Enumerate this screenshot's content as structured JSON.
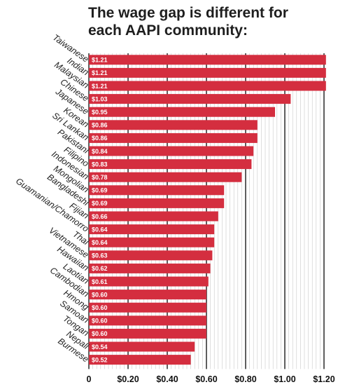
{
  "chart_data": {
    "type": "bar",
    "orientation": "horizontal",
    "title_lines": [
      "The wage gap is different for",
      "each AAPI community:"
    ],
    "categories": [
      "Taiwanese",
      "Indian",
      "Malaysian",
      "Chinese",
      "Japanese",
      "Korean",
      "Sri Lankan",
      "Pakistani",
      "Filipino",
      "Indonesian",
      "Mongolian",
      "Bangladeshi",
      "Fijian",
      "Guamanian/Chamorro",
      "Thai",
      "Vietnamese",
      "Hawaiian",
      "Laotian",
      "Cambodian",
      "Hmong",
      "Samoan",
      "Tongan",
      "Nepali",
      "Burmese"
    ],
    "values": [
      1.21,
      1.21,
      1.21,
      1.03,
      0.95,
      0.86,
      0.86,
      0.84,
      0.83,
      0.78,
      0.69,
      0.69,
      0.66,
      0.64,
      0.64,
      0.63,
      0.62,
      0.61,
      0.6,
      0.6,
      0.6,
      0.6,
      0.54,
      0.52
    ],
    "data_labels": [
      "$1.21",
      "$1.21",
      "$1.21",
      "$1.03",
      "$0.95",
      "$0.86",
      "$0.86",
      "$0.84",
      "$0.83",
      "$0.78",
      "$0.69",
      "$0.69",
      "$0.66",
      "$0.64",
      "$0.64",
      "$0.63",
      "$0.62",
      "$0.61",
      "$0.60",
      "$0.60",
      "$0.60",
      "$0.60",
      "$0.54",
      "$0.52"
    ],
    "x_ticks": [
      "0",
      "$0.20",
      "$0.40",
      "$0.60",
      "$0.80",
      "$1.00",
      "$1.20"
    ],
    "xlim": [
      0,
      1.2
    ],
    "bar_color": "#d42e3f",
    "grid": true
  }
}
